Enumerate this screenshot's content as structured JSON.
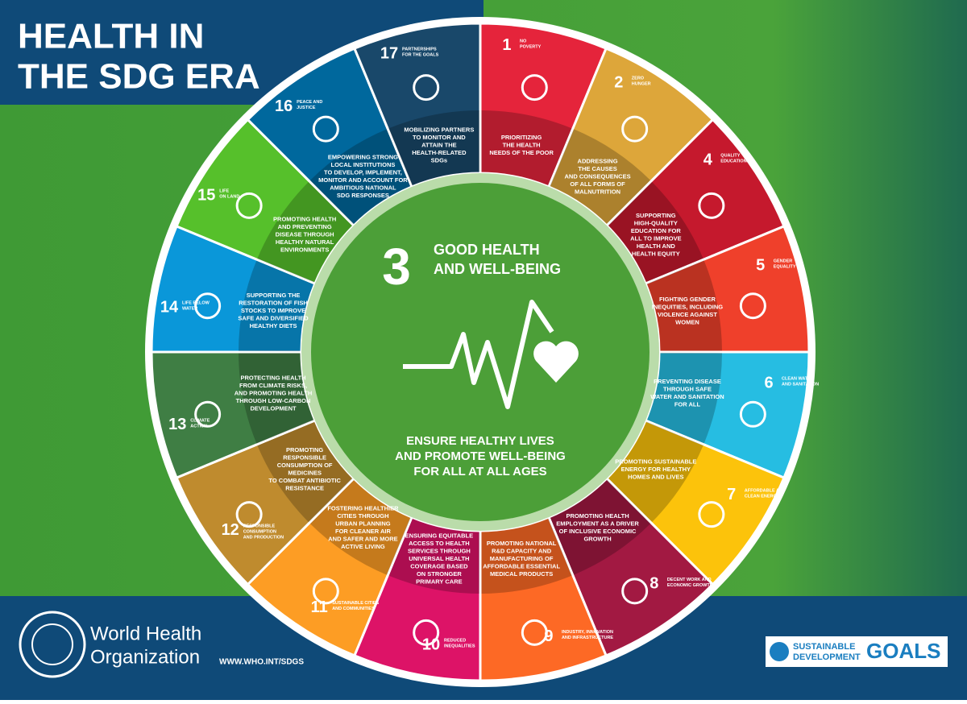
{
  "header": {
    "title": [
      "HEALTH IN",
      "THE SDG ERA"
    ]
  },
  "center": {
    "number": "3",
    "title": [
      "GOOD HEALTH",
      "AND WELL-BEING"
    ],
    "statement": [
      "ENSURE HEALTHY LIVES",
      "AND PROMOTE WELL-BEING",
      "FOR ALL AT ALL AGES"
    ]
  },
  "segments": [
    {
      "number": "1",
      "name": [
        "NO",
        "POVERTY"
      ],
      "color": "#e5243b",
      "description": [
        "PRIORITIZING",
        "THE HEALTH",
        "NEEDS OF THE POOR"
      ]
    },
    {
      "number": "2",
      "name": [
        "ZERO",
        "HUNGER"
      ],
      "color": "#dda63a",
      "description": [
        "ADDRESSING",
        "THE CAUSES",
        "AND CONSEQUENCES",
        "OF ALL FORMS OF",
        "MALNUTRITION"
      ]
    },
    {
      "number": "4",
      "name": [
        "QUALITY",
        "EDUCATION"
      ],
      "color": "#c5192d",
      "description": [
        "SUPPORTING",
        "HIGH-QUALITY",
        "EDUCATION FOR",
        "ALL TO IMPROVE",
        "HEALTH AND",
        "HEALTH EQUITY"
      ]
    },
    {
      "number": "5",
      "name": [
        "GENDER",
        "EQUALITY"
      ],
      "color": "#ef402b",
      "description": [
        "FIGHTING GENDER",
        "INEQUITIES, INCLUDING",
        "VIOLENCE AGAINST",
        "WOMEN"
      ]
    },
    {
      "number": "6",
      "name": [
        "CLEAN WATER",
        "AND SANITATION"
      ],
      "color": "#26bde2",
      "description": [
        "PREVENTING DISEASE",
        "THROUGH SAFE",
        "WATER AND SANITATION",
        "FOR ALL"
      ]
    },
    {
      "number": "7",
      "name": [
        "AFFORDABLE AND",
        "CLEAN ENERGY"
      ],
      "color": "#fcc30b",
      "description": [
        "PROMOTING SUSTAINABLE",
        "ENERGY FOR HEALTHY",
        "HOMES AND LIVES"
      ]
    },
    {
      "number": "8",
      "name": [
        "DECENT WORK AND",
        "ECONOMIC GROWTH"
      ],
      "color": "#a21942",
      "description": [
        "PROMOTING HEALTH",
        "EMPLOYMENT AS A DRIVER",
        "OF INCLUSIVE ECONOMIC",
        "GROWTH"
      ]
    },
    {
      "number": "9",
      "name": [
        "INDUSTRY, INNOVATION",
        "AND INFRASTRUCTURE"
      ],
      "color": "#fd6925",
      "description": [
        "PROMOTING NATIONAL",
        "R&D CAPACITY AND",
        "MANUFACTURING OF",
        "AFFORDABLE ESSENTIAL",
        "MEDICAL PRODUCTS"
      ]
    },
    {
      "number": "10",
      "name": [
        "REDUCED",
        "INEQUALITIES"
      ],
      "color": "#dd1367",
      "description": [
        "ENSURING EQUITABLE",
        "ACCESS TO HEALTH",
        "SERVICES THROUGH",
        "UNIVERSAL HEALTH",
        "COVERAGE BASED",
        "ON STRONGER",
        "PRIMARY CARE"
      ]
    },
    {
      "number": "11",
      "name": [
        "SUSTAINABLE CITIES",
        "AND COMMUNITIES"
      ],
      "color": "#fd9d24",
      "description": [
        "FOSTERING HEALTHIER",
        "CITIES THROUGH",
        "URBAN PLANNING",
        "FOR CLEANER AIR",
        "AND SAFER AND MORE",
        "ACTIVE LIVING"
      ]
    },
    {
      "number": "12",
      "name": [
        "RESPONSIBLE",
        "CONSUMPTION",
        "AND PRODUCTION"
      ],
      "color": "#bf8b2e",
      "description": [
        "PROMOTING",
        "RESPONSIBLE",
        "CONSUMPTION OF",
        "MEDICINES",
        "TO COMBAT ANTIBIOTIC",
        "RESISTANCE"
      ]
    },
    {
      "number": "13",
      "name": [
        "CLIMATE",
        "ACTION"
      ],
      "color": "#3f7e44",
      "description": [
        "PROTECTING HEALTH",
        "FROM CLIMATE RISKS,",
        "AND PROMOTING HEALTH",
        "THROUGH LOW-CARBON",
        "DEVELOPMENT"
      ]
    },
    {
      "number": "14",
      "name": [
        "LIFE BELOW",
        "WATER"
      ],
      "color": "#0a97d9",
      "description": [
        "SUPPORTING THE",
        "RESTORATION OF FISH",
        "STOCKS TO IMPROVE",
        "SAFE AND DIVERSIFIED",
        "HEALTHY DIETS"
      ]
    },
    {
      "number": "15",
      "name": [
        "LIFE",
        "ON LAND"
      ],
      "color": "#56c02b",
      "description": [
        "PROMOTING HEALTH",
        "AND PREVENTING",
        "DISEASE THROUGH",
        "HEALTHY NATURAL",
        "ENVIRONMENTS"
      ]
    },
    {
      "number": "16",
      "name": [
        "PEACE AND",
        "JUSTICE"
      ],
      "color": "#00689d",
      "description": [
        "EMPOWERING STRONG",
        "LOCAL INSTITUTIONS",
        "TO DEVELOP, IMPLEMENT,",
        "MONITOR AND ACCOUNT FOR",
        "AMBITIOUS NATIONAL",
        "SDG RESPONSES"
      ]
    },
    {
      "number": "17",
      "name": [
        "PARTNERSHIPS",
        "FOR THE GOALS"
      ],
      "color": "#19486a",
      "description": [
        "MOBILIZING PARTNERS",
        "TO MONITOR AND",
        "ATTAIN THE",
        "HEALTH-RELATED",
        "SDGs"
      ]
    }
  ],
  "footer": {
    "organization": [
      "World Health",
      "Organization"
    ],
    "url": "WWW.WHO.INT/SDGS",
    "sdg_logo": [
      "SUSTAINABLE",
      "DEVELOPMENT",
      "GOALS"
    ]
  }
}
